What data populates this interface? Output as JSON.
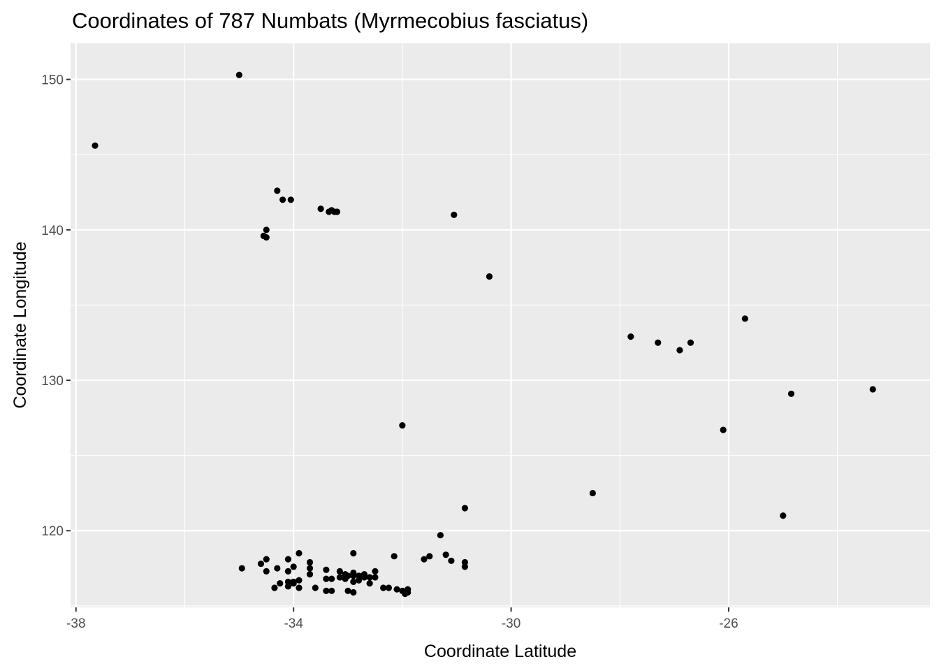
{
  "chart_data": {
    "type": "scatter",
    "title": "Coordinates of 787 Numbats (Myrmecobius fasciatus)",
    "xlabel": "Coordinate Latitude",
    "ylabel": "Coordinate Longitude",
    "xlim": [
      -38.1,
      -22.3
    ],
    "ylim": [
      114.9,
      152.4
    ],
    "x_ticks": [
      -38,
      -34,
      -30,
      -26
    ],
    "x_tick_labels": [
      "-38",
      "-34",
      "-30",
      "-26"
    ],
    "x_minor_ticks": [
      -36,
      -32,
      -28,
      -24
    ],
    "y_ticks": [
      120,
      130,
      140,
      150
    ],
    "y_tick_labels": [
      "120",
      "130",
      "140",
      "150"
    ],
    "y_minor_ticks": [
      115,
      125,
      135,
      145
    ],
    "grid": true,
    "legend": "none",
    "colors": {
      "panel": "#ebebeb",
      "grid": "#ffffff",
      "point": "#000000",
      "tick": "#333333"
    },
    "points": [
      [
        -37.65,
        145.6
      ],
      [
        -35.0,
        150.3
      ],
      [
        -34.3,
        142.6
      ],
      [
        -34.2,
        142.0
      ],
      [
        -34.05,
        142.0
      ],
      [
        -33.5,
        141.4
      ],
      [
        -33.35,
        141.2
      ],
      [
        -33.3,
        141.3
      ],
      [
        -33.25,
        141.2
      ],
      [
        -33.2,
        141.2
      ],
      [
        -34.5,
        140.0
      ],
      [
        -34.55,
        139.6
      ],
      [
        -34.5,
        139.5
      ],
      [
        -31.05,
        141.0
      ],
      [
        -30.4,
        136.9
      ],
      [
        -27.8,
        132.9
      ],
      [
        -27.3,
        132.5
      ],
      [
        -26.9,
        132.0
      ],
      [
        -26.7,
        132.5
      ],
      [
        -25.7,
        134.1
      ],
      [
        -24.85,
        129.1
      ],
      [
        -23.35,
        129.4
      ],
      [
        -26.1,
        126.7
      ],
      [
        -25.0,
        121.0
      ],
      [
        -32.0,
        127.0
      ],
      [
        -28.5,
        122.5
      ],
      [
        -30.85,
        121.5
      ],
      [
        -31.3,
        119.7
      ],
      [
        -34.95,
        117.5
      ],
      [
        -34.6,
        117.8
      ],
      [
        -34.5,
        118.1
      ],
      [
        -34.5,
        117.3
      ],
      [
        -34.3,
        117.5
      ],
      [
        -34.35,
        116.2
      ],
      [
        -34.25,
        116.5
      ],
      [
        -34.1,
        118.1
      ],
      [
        -34.1,
        117.3
      ],
      [
        -34.1,
        116.6
      ],
      [
        -34.1,
        116.3
      ],
      [
        -34.0,
        117.6
      ],
      [
        -34.0,
        116.6
      ],
      [
        -34.0,
        116.5
      ],
      [
        -33.9,
        118.5
      ],
      [
        -33.9,
        116.7
      ],
      [
        -33.9,
        116.2
      ],
      [
        -33.7,
        117.9
      ],
      [
        -33.7,
        117.5
      ],
      [
        -33.7,
        117.1
      ],
      [
        -33.6,
        116.2
      ],
      [
        -33.4,
        117.4
      ],
      [
        -33.4,
        116.8
      ],
      [
        -33.4,
        116.0
      ],
      [
        -33.3,
        116.8
      ],
      [
        -33.3,
        116.0
      ],
      [
        -33.15,
        117.3
      ],
      [
        -33.15,
        116.9
      ],
      [
        -33.05,
        117.1
      ],
      [
        -33.05,
        116.8
      ],
      [
        -33.0,
        117.0
      ],
      [
        -33.0,
        116.0
      ],
      [
        -32.9,
        118.5
      ],
      [
        -32.9,
        117.2
      ],
      [
        -32.9,
        117.0
      ],
      [
        -32.9,
        116.6
      ],
      [
        -32.9,
        115.9
      ],
      [
        -32.8,
        117.0
      ],
      [
        -32.8,
        116.7
      ],
      [
        -32.7,
        117.1
      ],
      [
        -32.7,
        116.9
      ],
      [
        -32.6,
        116.5
      ],
      [
        -32.6,
        116.9
      ],
      [
        -32.5,
        117.3
      ],
      [
        -32.5,
        116.9
      ],
      [
        -32.35,
        116.2
      ],
      [
        -32.25,
        116.2
      ],
      [
        -32.15,
        118.3
      ],
      [
        -32.1,
        116.1
      ],
      [
        -32.0,
        116.0
      ],
      [
        -31.95,
        115.8
      ],
      [
        -31.9,
        116.1
      ],
      [
        -31.9,
        115.9
      ],
      [
        -31.6,
        118.1
      ],
      [
        -31.5,
        118.3
      ],
      [
        -31.2,
        118.4
      ],
      [
        -31.1,
        118.0
      ],
      [
        -30.85,
        117.9
      ],
      [
        -30.85,
        117.6
      ]
    ]
  }
}
